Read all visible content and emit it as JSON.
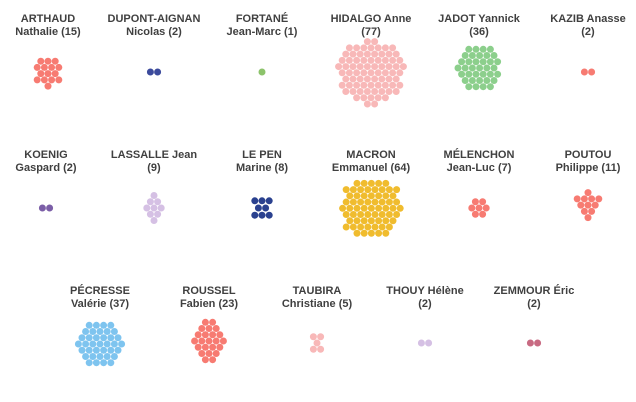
{
  "chart_data": {
    "type": "beeswarm",
    "title": "",
    "unit": "dots",
    "series": [
      {
        "first": "ARTHAUD",
        "second": "Nathalie",
        "count_label": "(15)",
        "value": 15,
        "color": "#f77b72"
      },
      {
        "first": "DUPONT-AIGNAN",
        "second": "Nicolas",
        "count_label": "(2)",
        "value": 2,
        "color": "#3b4a9c"
      },
      {
        "first": "FORTANÉ",
        "second": "Jean-Marc",
        "count_label": "(1)",
        "value": 1,
        "color": "#8cc36b"
      },
      {
        "first": "HIDALGO Anne",
        "second": "",
        "count_label": "(77)",
        "value": 77,
        "color": "#f8b8b8"
      },
      {
        "first": "JADOT Yannick",
        "second": "",
        "count_label": "(36)",
        "value": 36,
        "color": "#8ccf8c"
      },
      {
        "first": "KAZIB Anasse",
        "second": "",
        "count_label": "(2)",
        "value": 2,
        "color": "#f77b72"
      },
      {
        "first": "KOENIG",
        "second": "Gaspard",
        "count_label": "(2)",
        "value": 2,
        "color": "#7b5ea7"
      },
      {
        "first": "LASSALLE Jean",
        "second": "",
        "count_label": "(9)",
        "value": 9,
        "color": "#d5c0e4"
      },
      {
        "first": "LE PEN",
        "second": "Marine",
        "count_label": "(8)",
        "value": 8,
        "color": "#2a418f"
      },
      {
        "first": "MACRON",
        "second": "Emmanuel",
        "count_label": "(64)",
        "value": 64,
        "color": "#f0bc2e"
      },
      {
        "first": "MÉLENCHON",
        "second": "Jean-Luc",
        "count_label": "(7)",
        "value": 7,
        "color": "#f77b72"
      },
      {
        "first": "POUTOU",
        "second": "Philippe",
        "count_label": "(11)",
        "value": 11,
        "color": "#f77b72"
      },
      {
        "first": "PÉCRESSE",
        "second": "Valérie",
        "count_label": "(37)",
        "value": 37,
        "color": "#7ec4ef"
      },
      {
        "first": "ROUSSEL",
        "second": "Fabien",
        "count_label": "(23)",
        "value": 23,
        "color": "#f77b72"
      },
      {
        "first": "TAUBIRA",
        "second": "Christiane",
        "count_label": "(5)",
        "value": 5,
        "color": "#f8b8b8"
      },
      {
        "first": "THOUY Hélène",
        "second": "",
        "count_label": "(2)",
        "value": 2,
        "color": "#d5c0e4"
      },
      {
        "first": "ZEMMOUR Éric",
        "second": "",
        "count_label": "(2)",
        "value": 2,
        "color": "#c86a82"
      }
    ]
  }
}
